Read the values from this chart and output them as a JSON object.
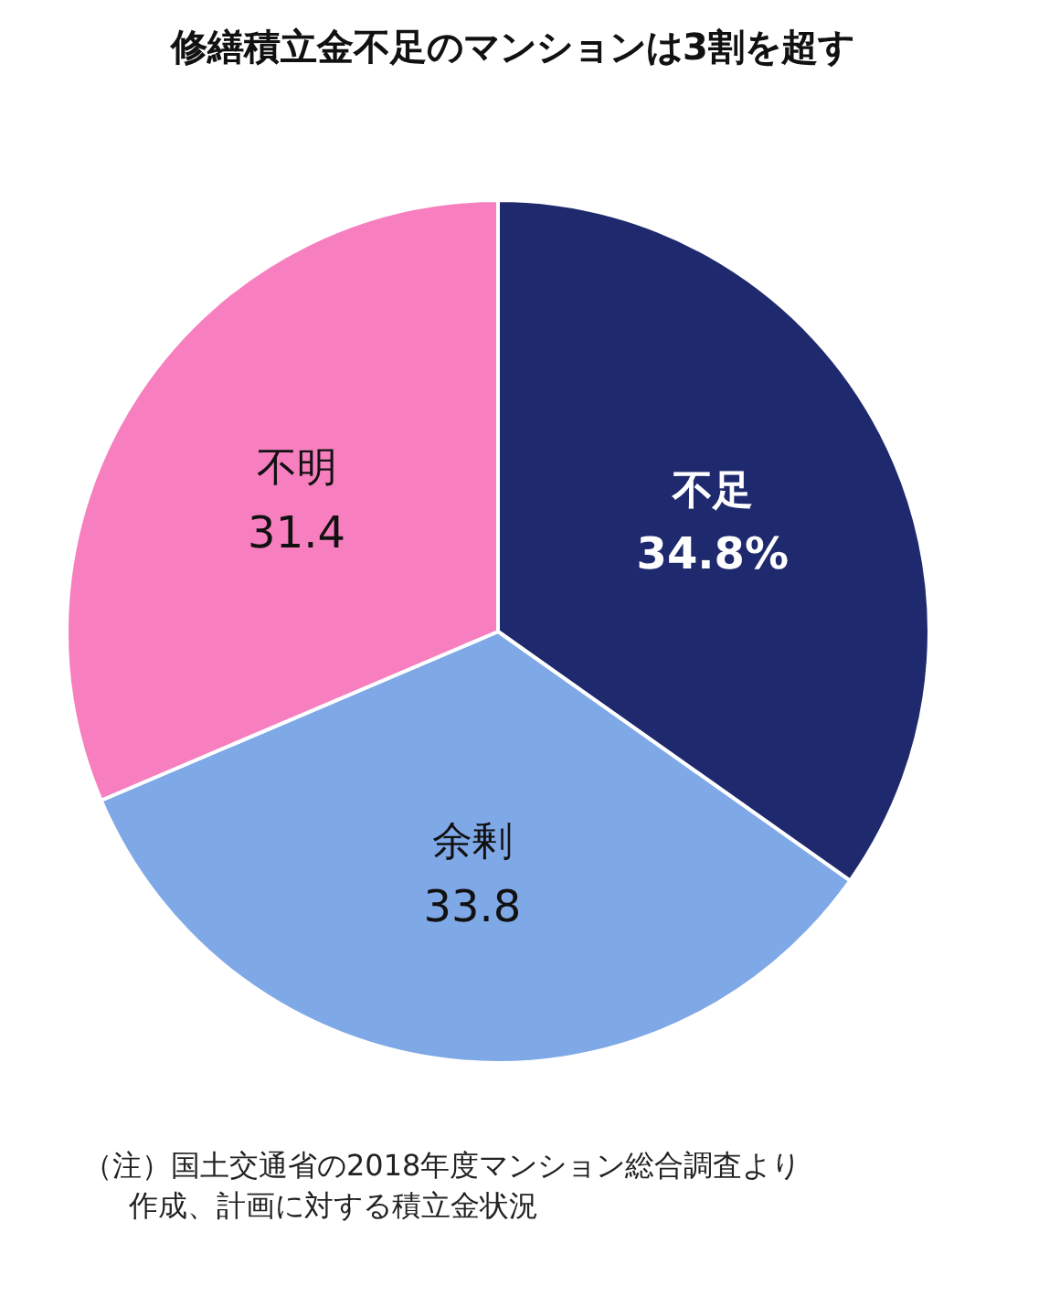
{
  "chart_data": {
    "type": "pie",
    "title": "修繕積立金不足のマンションは3割を超す",
    "categories": [
      "不足",
      "余剰",
      "不明"
    ],
    "values": [
      34.8,
      33.8,
      31.4
    ],
    "value_labels": [
      "34.8%",
      "33.8",
      "31.4"
    ],
    "colors": [
      "#1f2a6e",
      "#7fa8e6",
      "#f77fbf"
    ],
    "annotations": [
      "（注）国土交通省の2018年度マンション総合調査より作成、計画に対する積立金状況"
    ]
  }
}
